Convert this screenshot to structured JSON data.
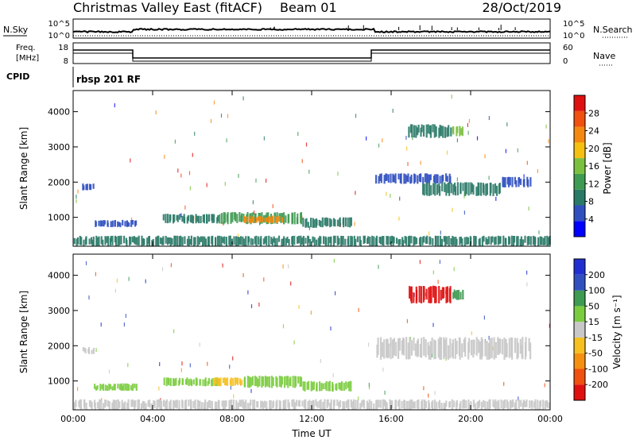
{
  "header": {
    "station": "Christmas Valley East (fitACF)",
    "beam": "Beam 01",
    "date": "28/Oct/2019",
    "program": "rbsp 201 RF"
  },
  "strip_labels": {
    "nsky": "N.Sky",
    "nsearch": "N.Search",
    "freq_line1": "Freq.",
    "freq_line2": "[MHz]",
    "nave": "Nave",
    "cpid": "CPID",
    "noise_ticks": [
      "10^5",
      "10^0"
    ],
    "freq_ticks": [
      "18",
      "8"
    ],
    "nave_ticks": [
      "60",
      "0"
    ]
  },
  "colors": {
    "power_scale": [
      "#0000ff",
      "#3050c0",
      "#2a7a68",
      "#3f9a52",
      "#7cc040",
      "#f5c010",
      "#f58810",
      "#f05010",
      "#e01010"
    ],
    "velocity_scale": [
      "#e01010",
      "#f05010",
      "#f59010",
      "#f5c020",
      "#c8c8c8",
      "#7ccc40",
      "#3f9a52",
      "#3050c0",
      "#2030d0"
    ]
  },
  "chart_data": [
    {
      "type": "heatmap",
      "name": "power",
      "xlabel": "",
      "ylabel": "Slant Range [km]",
      "xlim": [
        0,
        24
      ],
      "ylim": [
        180,
        4600
      ],
      "xticks": [
        "00:00",
        "04:00",
        "08:00",
        "12:00",
        "16:00",
        "20:00",
        "00:00"
      ],
      "yticks": [
        1000,
        2000,
        3000,
        4000
      ],
      "colorbar": {
        "label": "Power [dB]",
        "ticks": [
          4,
          8,
          12,
          16,
          20,
          24,
          28
        ],
        "range": [
          0,
          32
        ]
      },
      "regions": [
        {
          "t0": 0.4,
          "t1": 1.0,
          "r0": 1760,
          "r1": 1960,
          "value": 6
        },
        {
          "t0": 1.0,
          "t1": 3.2,
          "r0": 720,
          "r1": 930,
          "value": 7
        },
        {
          "t0": 4.5,
          "t1": 7.3,
          "r0": 820,
          "r1": 1100,
          "value": 9
        },
        {
          "t0": 7.3,
          "t1": 11.5,
          "r0": 800,
          "r1": 1150,
          "value": 14
        },
        {
          "t0": 8.5,
          "t1": 10.5,
          "r0": 830,
          "r1": 1050,
          "value": 24
        },
        {
          "t0": 11.5,
          "t1": 14.0,
          "r0": 700,
          "r1": 1000,
          "value": 9
        },
        {
          "t0": 16.8,
          "t1": 19.0,
          "r0": 3250,
          "r1": 3650,
          "value": 8
        },
        {
          "t0": 19.0,
          "t1": 19.6,
          "r0": 3300,
          "r1": 3600,
          "value": 15
        },
        {
          "t0": 15.2,
          "t1": 19.0,
          "r0": 1950,
          "r1": 2250,
          "value": 5
        },
        {
          "t0": 17.5,
          "t1": 21.5,
          "r0": 1600,
          "r1": 2000,
          "value": 9
        },
        {
          "t0": 21.5,
          "t1": 23.0,
          "r0": 1850,
          "r1": 2150,
          "value": 5
        },
        {
          "t0": 0.0,
          "t1": 24.0,
          "r0": 180,
          "r1": 480,
          "value": 10
        }
      ]
    },
    {
      "type": "heatmap",
      "name": "velocity",
      "xlabel": "Time UT",
      "ylabel": "Slant Range [km]",
      "xlim": [
        0,
        24
      ],
      "ylim": [
        180,
        4600
      ],
      "xticks": [
        "00:00",
        "04:00",
        "08:00",
        "12:00",
        "16:00",
        "20:00",
        "00:00"
      ],
      "yticks": [
        1000,
        2000,
        3000,
        4000
      ],
      "colorbar": {
        "label": "Velocity [m s⁻¹]",
        "ticks": [
          -200,
          -100,
          -50,
          -15,
          15,
          50,
          100,
          200
        ],
        "range": [
          -250,
          250
        ]
      },
      "regions": [
        {
          "t0": 0.4,
          "t1": 1.0,
          "r0": 1760,
          "r1": 1960,
          "value": -20
        },
        {
          "t0": 1.0,
          "t1": 3.2,
          "r0": 720,
          "r1": 930,
          "value": 30
        },
        {
          "t0": 4.5,
          "t1": 7.3,
          "r0": 850,
          "r1": 1100,
          "value": 30
        },
        {
          "t0": 7.0,
          "t1": 8.5,
          "r0": 850,
          "r1": 1100,
          "value": -60
        },
        {
          "t0": 8.5,
          "t1": 11.5,
          "r0": 800,
          "r1": 1150,
          "value": 30
        },
        {
          "t0": 11.5,
          "t1": 14.0,
          "r0": 700,
          "r1": 1000,
          "value": 30
        },
        {
          "t0": 16.8,
          "t1": 19.0,
          "r0": 3200,
          "r1": 3700,
          "value": -220
        },
        {
          "t0": 19.0,
          "t1": 19.6,
          "r0": 3300,
          "r1": 3600,
          "value": 120
        },
        {
          "t0": 15.2,
          "t1": 23.0,
          "r0": 1600,
          "r1": 2250,
          "value": 0
        },
        {
          "t0": 0.0,
          "t1": 24.0,
          "r0": 180,
          "r1": 480,
          "value": 25
        }
      ]
    }
  ]
}
